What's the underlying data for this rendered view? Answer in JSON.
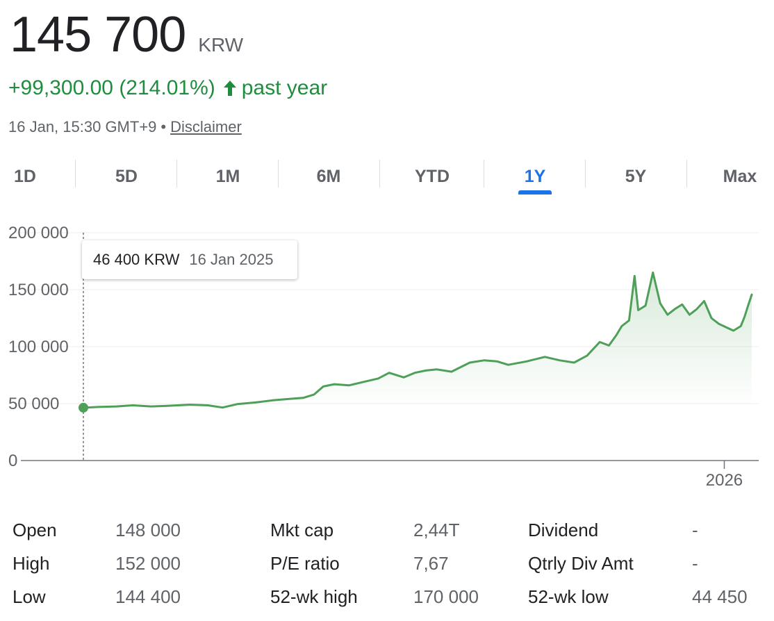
{
  "quote": {
    "price": "145 700",
    "currency": "KRW",
    "change": "+99,300.00 (214.01%)",
    "period": "past year",
    "timestamp": "16 Jan, 15:30 GMT+9",
    "separator": "•",
    "disclaimer": "Disclaimer"
  },
  "tabs": [
    {
      "label": "1D"
    },
    {
      "label": "5D"
    },
    {
      "label": "1M"
    },
    {
      "label": "6M"
    },
    {
      "label": "YTD"
    },
    {
      "label": "1Y",
      "active": true
    },
    {
      "label": "5Y"
    },
    {
      "label": "Max"
    }
  ],
  "tooltip": {
    "value": "46 400 KRW",
    "date": "16 Jan 2025"
  },
  "colors": {
    "line": "#4e9f58",
    "accent": "#1a73e8",
    "positive": "#1e8e3e"
  },
  "chart_data": {
    "type": "area",
    "ylim": [
      0,
      200000
    ],
    "yticks": [
      0,
      50000,
      100000,
      150000,
      200000
    ],
    "ytick_labels": [
      "0",
      "50 000",
      "100 000",
      "150 000",
      "200 000"
    ],
    "xtick_labels": [
      "2026"
    ],
    "xtick_dates": [
      "2026-01-01"
    ],
    "x_range": [
      "2025-01-16",
      "2026-01-16"
    ],
    "grid": true,
    "series": [
      {
        "x": [
          "2025-01-16",
          "2025-01-24",
          "2025-02-03",
          "2025-02-12",
          "2025-02-22",
          "2025-03-03",
          "2025-03-15",
          "2025-03-25",
          "2025-04-02",
          "2025-04-10",
          "2025-04-20",
          "2025-04-30",
          "2025-05-08",
          "2025-05-16",
          "2025-05-22",
          "2025-05-27",
          "2025-06-02",
          "2025-06-10",
          "2025-06-18",
          "2025-06-26",
          "2025-07-02",
          "2025-07-10",
          "2025-07-16",
          "2025-07-22",
          "2025-07-28",
          "2025-08-05",
          "2025-08-15",
          "2025-08-23",
          "2025-08-30",
          "2025-09-05",
          "2025-09-15",
          "2025-09-25",
          "2025-10-03",
          "2025-10-11",
          "2025-10-18",
          "2025-10-25",
          "2025-10-30",
          "2025-11-03",
          "2025-11-06",
          "2025-11-10",
          "2025-11-13",
          "2025-11-15",
          "2025-11-19",
          "2025-11-23",
          "2025-11-27",
          "2025-12-01",
          "2025-12-05",
          "2025-12-09",
          "2025-12-13",
          "2025-12-17",
          "2025-12-21",
          "2025-12-25",
          "2025-12-29",
          "2026-01-02",
          "2026-01-06",
          "2026-01-10",
          "2026-01-12",
          "2026-01-14",
          "2026-01-16"
        ],
        "values": [
          46400,
          47000,
          47500,
          48500,
          47500,
          48000,
          49000,
          48500,
          46500,
          49500,
          51000,
          53000,
          54000,
          55000,
          58000,
          65000,
          67000,
          66000,
          69000,
          72000,
          77000,
          73000,
          77000,
          79000,
          80000,
          78000,
          86000,
          88000,
          87000,
          84000,
          87000,
          91000,
          88000,
          86000,
          92000,
          104000,
          101000,
          110000,
          118000,
          123000,
          162000,
          132000,
          136000,
          165000,
          138000,
          128000,
          133000,
          137000,
          128000,
          133000,
          140000,
          125000,
          120000,
          117000,
          114000,
          118000,
          126000,
          136000,
          145700
        ]
      }
    ]
  }
}
